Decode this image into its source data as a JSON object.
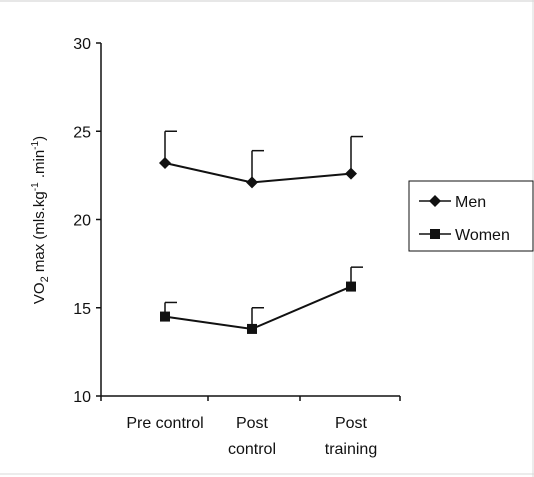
{
  "chart_data": {
    "type": "line",
    "categories": [
      [
        "Pre control"
      ],
      [
        "Post",
        "control"
      ],
      [
        "Post",
        "training"
      ]
    ],
    "series": [
      {
        "name": "Men",
        "marker": "diamond",
        "values": [
          23.2,
          22.1,
          22.6
        ],
        "error_upper": [
          1.8,
          1.8,
          2.1
        ]
      },
      {
        "name": "Women",
        "marker": "square",
        "values": [
          14.5,
          13.8,
          16.2
        ],
        "error_upper": [
          0.8,
          1.2,
          1.1
        ]
      }
    ],
    "ylabel": {
      "main": "VO",
      "sub": "2",
      "mid": " max (mls.kg",
      "sup1": "-1",
      "dot": " .min",
      "sup2": "-1",
      "end": ")"
    },
    "ylim": [
      10,
      30
    ],
    "yticks": [
      10,
      15,
      20,
      25,
      30
    ],
    "grid": false,
    "legend_position": "right",
    "line_color": "#111111"
  }
}
